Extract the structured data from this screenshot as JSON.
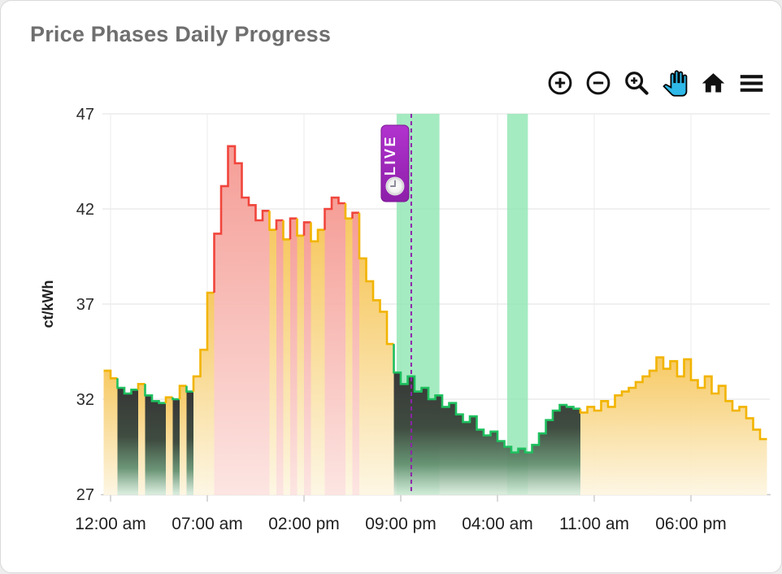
{
  "card": {
    "title": "Price Phases Daily Progress"
  },
  "toolbar": {
    "buttons": [
      {
        "name": "zoom-in-icon"
      },
      {
        "name": "zoom-out-icon"
      },
      {
        "name": "box-zoom-icon"
      },
      {
        "name": "pan-icon",
        "active": true,
        "active_color": "#2fb9e8"
      },
      {
        "name": "home-icon"
      },
      {
        "name": "menu-icon"
      }
    ]
  },
  "chart_data": {
    "type": "area",
    "title": "Price Phases Daily Progress",
    "ylabel": "ct/kWh",
    "ylim": [
      27,
      47
    ],
    "yticks": [
      47,
      42,
      37,
      32,
      27
    ],
    "grid": "on",
    "step_hours": 0.5,
    "window": {
      "start_hour": -0.59,
      "end_hour": 47.7
    },
    "xticks": [
      {
        "hour": 0,
        "label": "12:00 am"
      },
      {
        "hour": 7,
        "label": "07:00 am"
      },
      {
        "hour": 14,
        "label": "02:00 pm"
      },
      {
        "hour": 21,
        "label": "09:00 pm"
      },
      {
        "hour": 28,
        "label": "04:00 am"
      },
      {
        "hour": 35,
        "label": "11:00 am"
      },
      {
        "hour": 42,
        "label": "06:00 pm"
      }
    ],
    "phase_colors": {
      "y": "#f2b400",
      "r": "#f0453c",
      "g": "#1ec05f"
    },
    "band_color": "#8ee6b1",
    "bands": [
      {
        "start_hour": 20.7,
        "end_hour": 23.8
      },
      {
        "start_hour": 28.7,
        "end_hour": 30.2
      }
    ],
    "live": {
      "hour": 21.76,
      "label": "LIVE",
      "line_color": "#8e24aa",
      "badge_color": "#9c27b0"
    },
    "points": [
      [
        -0.5,
        33.5,
        "y"
      ],
      [
        0,
        33.1,
        "y"
      ],
      [
        0.5,
        32.6,
        "g"
      ],
      [
        1,
        32.3,
        "g"
      ],
      [
        1.5,
        32.5,
        "g"
      ],
      [
        2,
        32.8,
        "y"
      ],
      [
        2.5,
        32.2,
        "g"
      ],
      [
        3,
        31.9,
        "g"
      ],
      [
        3.5,
        31.8,
        "g"
      ],
      [
        4,
        32.1,
        "y"
      ],
      [
        4.5,
        32,
        "g"
      ],
      [
        5,
        32.7,
        "y"
      ],
      [
        5.5,
        32.4,
        "g"
      ],
      [
        6,
        33.2,
        "y"
      ],
      [
        6.5,
        34.6,
        "y"
      ],
      [
        7,
        37.6,
        "y"
      ],
      [
        7.5,
        40.7,
        "r"
      ],
      [
        8,
        43.2,
        "r"
      ],
      [
        8.5,
        45.3,
        "r"
      ],
      [
        9,
        44.4,
        "r"
      ],
      [
        9.5,
        42.6,
        "r"
      ],
      [
        10,
        42.2,
        "r"
      ],
      [
        10.5,
        41.4,
        "r"
      ],
      [
        11,
        41.9,
        "r"
      ],
      [
        11.5,
        40.9,
        "y"
      ],
      [
        12,
        41.4,
        "r"
      ],
      [
        12.5,
        40.4,
        "y"
      ],
      [
        13,
        41.5,
        "r"
      ],
      [
        13.5,
        40.6,
        "y"
      ],
      [
        14,
        41.3,
        "r"
      ],
      [
        14.5,
        40.3,
        "y"
      ],
      [
        15,
        40.9,
        "y"
      ],
      [
        15.5,
        42,
        "r"
      ],
      [
        16,
        42.6,
        "r"
      ],
      [
        16.5,
        42.3,
        "r"
      ],
      [
        17,
        41.5,
        "y"
      ],
      [
        17.5,
        41.8,
        "r"
      ],
      [
        18,
        39.4,
        "y"
      ],
      [
        18.5,
        38.2,
        "y"
      ],
      [
        19,
        37.2,
        "y"
      ],
      [
        19.5,
        36.6,
        "y"
      ],
      [
        20,
        34.9,
        "y"
      ],
      [
        20.5,
        33.4,
        "g"
      ],
      [
        21,
        32.8,
        "g"
      ],
      [
        21.5,
        33.2,
        "g"
      ],
      [
        22,
        32.4,
        "g"
      ],
      [
        22.5,
        32.6,
        "g"
      ],
      [
        23,
        32,
        "g"
      ],
      [
        23.5,
        32.2,
        "g"
      ],
      [
        24,
        31.6,
        "g"
      ],
      [
        24.5,
        31.8,
        "g"
      ],
      [
        25,
        31.2,
        "g"
      ],
      [
        25.5,
        30.8,
        "g"
      ],
      [
        26,
        31.1,
        "g"
      ],
      [
        26.5,
        30.4,
        "g"
      ],
      [
        27,
        30.1,
        "g"
      ],
      [
        27.5,
        30.3,
        "g"
      ],
      [
        28,
        29.8,
        "g"
      ],
      [
        28.5,
        29.5,
        "g"
      ],
      [
        29,
        29.2,
        "g"
      ],
      [
        29.5,
        29.4,
        "g"
      ],
      [
        30,
        29.2,
        "g"
      ],
      [
        30.5,
        29.6,
        "g"
      ],
      [
        31,
        30.2,
        "g"
      ],
      [
        31.5,
        30.9,
        "g"
      ],
      [
        32,
        31.4,
        "g"
      ],
      [
        32.5,
        31.7,
        "g"
      ],
      [
        33,
        31.6,
        "g"
      ],
      [
        33.5,
        31.5,
        "g"
      ],
      [
        34,
        31.3,
        "y"
      ],
      [
        34.5,
        31.6,
        "y"
      ],
      [
        35,
        31.4,
        "y"
      ],
      [
        35.5,
        31.9,
        "y"
      ],
      [
        36,
        31.6,
        "y"
      ],
      [
        36.5,
        32.2,
        "y"
      ],
      [
        37,
        32.4,
        "y"
      ],
      [
        37.5,
        32.6,
        "y"
      ],
      [
        38,
        32.9,
        "y"
      ],
      [
        38.5,
        33.2,
        "y"
      ],
      [
        39,
        33.5,
        "y"
      ],
      [
        39.5,
        34.2,
        "y"
      ],
      [
        40,
        33.6,
        "y"
      ],
      [
        40.5,
        34,
        "y"
      ],
      [
        41,
        33.2,
        "y"
      ],
      [
        41.5,
        34.1,
        "y"
      ],
      [
        42,
        33,
        "y"
      ],
      [
        42.5,
        32.6,
        "y"
      ],
      [
        43,
        33.2,
        "y"
      ],
      [
        43.5,
        32.3,
        "y"
      ],
      [
        44,
        32.7,
        "y"
      ],
      [
        44.5,
        31.9,
        "y"
      ],
      [
        45,
        31.4,
        "y"
      ],
      [
        45.5,
        31.6,
        "y"
      ],
      [
        46,
        31,
        "y"
      ],
      [
        46.5,
        30.4,
        "y"
      ],
      [
        47,
        29.9,
        "y"
      ]
    ]
  }
}
